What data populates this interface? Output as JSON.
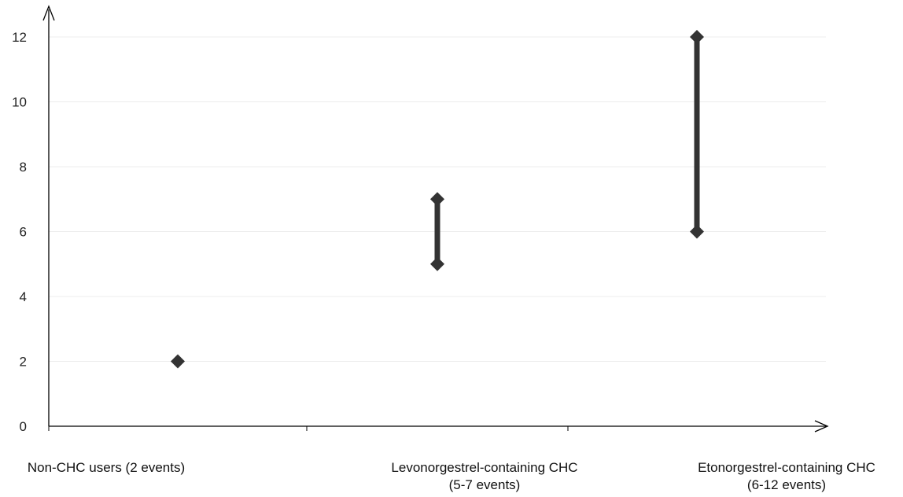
{
  "chart_data": {
    "type": "range",
    "title": "",
    "xlabel": "",
    "ylabel": "",
    "ylim": [
      0,
      12
    ],
    "yticks": [
      "0",
      "2",
      "4",
      "6",
      "8",
      "10",
      "12"
    ],
    "grid": true,
    "categories": [
      {
        "label_lines": [
          "Non-CHC users (2 events)"
        ],
        "low": 2,
        "high": 2
      },
      {
        "label_lines": [
          "Levonorgestrel-containing CHC",
          "(5-7 events)"
        ],
        "low": 5,
        "high": 7
      },
      {
        "label_lines": [
          "Etonorgestrel-containing CHC",
          "(6-12 events)"
        ],
        "low": 6,
        "high": 12
      }
    ],
    "colors": {
      "marker": "#333333",
      "axis": "#000000",
      "grid": "#ececec"
    }
  }
}
